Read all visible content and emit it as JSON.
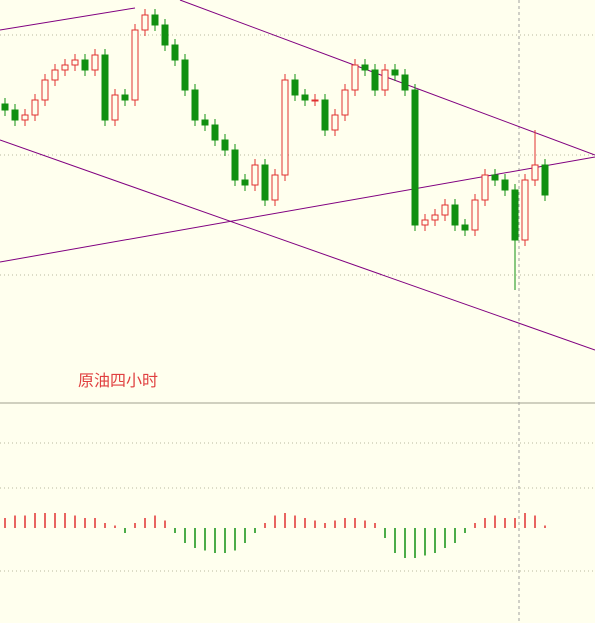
{
  "chart_data": [
    {
      "type": "candlestick",
      "title": "原油四小时",
      "ylim": [
        0,
        100
      ],
      "up_color": "#e03030",
      "down_color": "#109010",
      "open": [
        74,
        72.5,
        70,
        71.25,
        75,
        80,
        82.5,
        83.75,
        85,
        82.5,
        86.25,
        70,
        76.25,
        75,
        92.5,
        96.25,
        93.75,
        88.75,
        85,
        77.5,
        70,
        68.75,
        65,
        62.5,
        55,
        53.75,
        58.75,
        50,
        56.25,
        80,
        76.25,
        75,
        75,
        67.5,
        71.25,
        77.5,
        83.75,
        82.5,
        77.5,
        82.5,
        81.25,
        77.5,
        43.75,
        45,
        46.25,
        48.75,
        43.75,
        42.5,
        50,
        56.25,
        55,
        52.5,
        40,
        55,
        58.75
      ],
      "high": [
        75.5,
        74,
        72.75,
        76.5,
        81.5,
        84,
        85.25,
        86.5,
        86.5,
        87.75,
        87.75,
        77.75,
        77.75,
        94,
        97.75,
        97.75,
        95.25,
        90.25,
        86.5,
        79,
        71.5,
        70.25,
        66.5,
        64,
        56.5,
        60.25,
        60.25,
        57.75,
        81.5,
        81.5,
        77.75,
        76.5,
        76.5,
        72.75,
        79,
        85.25,
        85.25,
        84,
        84,
        84,
        82.75,
        79,
        46.5,
        47.75,
        50.25,
        50.25,
        45.25,
        51.5,
        57.75,
        57.75,
        56.5,
        54,
        56.5,
        67.5,
        60.25
      ],
      "low": [
        71,
        68.5,
        68.5,
        69.75,
        73.5,
        78.5,
        81,
        82.25,
        81,
        81,
        68.5,
        68.5,
        73.5,
        73.5,
        91,
        92.25,
        87.25,
        83.5,
        76,
        68.5,
        67.25,
        63.5,
        61,
        53.5,
        52.25,
        52.25,
        48.5,
        48.5,
        54.75,
        74.75,
        73.5,
        73.5,
        66,
        66,
        69.75,
        76,
        81,
        76,
        76,
        79.75,
        76,
        42.25,
        42.25,
        43.5,
        44.75,
        42.25,
        41,
        41,
        48.5,
        53.5,
        51,
        27.5,
        38.5,
        53.5,
        49.75
      ],
      "close": [
        72.5,
        70,
        71.25,
        75,
        80,
        82.5,
        83.75,
        85,
        82.5,
        86.25,
        70,
        76.25,
        75,
        92.5,
        96.25,
        93.75,
        88.75,
        85,
        77.5,
        70,
        68.75,
        65,
        62.5,
        55,
        53.75,
        58.75,
        50,
        56.25,
        80,
        76.25,
        75,
        75,
        67.5,
        71.25,
        77.5,
        83.75,
        82.5,
        77.5,
        82.5,
        81.25,
        77.5,
        43.75,
        45,
        46.25,
        48.75,
        43.75,
        42.5,
        50,
        56.25,
        55,
        52.5,
        40,
        55,
        58.75,
        51.25
      ]
    },
    {
      "type": "bar",
      "ylim": [
        -1,
        1
      ],
      "up_color": "#e03030",
      "down_color": "#109010",
      "values": [
        0.2,
        0.25,
        0.25,
        0.3,
        0.3,
        0.3,
        0.3,
        0.25,
        0.2,
        0.2,
        0.1,
        0.05,
        -0.1,
        0.1,
        0.2,
        0.25,
        0.15,
        -0.1,
        -0.3,
        -0.4,
        -0.45,
        -0.5,
        -0.5,
        -0.45,
        -0.3,
        -0.1,
        0.1,
        0.25,
        0.3,
        0.25,
        0.2,
        0.15,
        0.1,
        0.15,
        0.2,
        0.2,
        0.15,
        0.1,
        -0.2,
        -0.5,
        -0.6,
        -0.6,
        -0.55,
        -0.5,
        -0.4,
        -0.3,
        -0.1,
        0.1,
        0.2,
        0.25,
        0.2,
        0.2,
        0.3,
        0.25,
        0.05
      ]
    }
  ]
}
